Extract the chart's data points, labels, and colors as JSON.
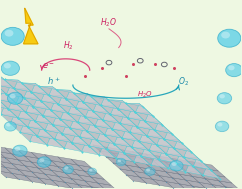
{
  "bg_color": "#eef8e2",
  "crystal_face_color": "#c4c4cc",
  "crystal_dark_color": "#a8a8b4",
  "crystal_edge_color": "#48ccd4",
  "crystal_node_color": "#50d4dc",
  "crystal_inner_color": "#d8d8e0",
  "bubble_color": "#50cce8",
  "bubble_edge": "#28a8c8",
  "lightning_color": "#f8c800",
  "lightning_edge": "#d09000",
  "arrow_pink": "#d83870",
  "arrow_cyan": "#18a0b8",
  "label_pink": "#cc2060",
  "label_cyan": "#1888a8",
  "graphene_face": "#9898a8",
  "graphene_edge": "#606878",
  "graphene_node": "#5090b0",
  "red_dot_color": "#cc3355",
  "vacancy_edge": "#505060",
  "slab_main_ox": 0.1,
  "slab_main_oy": 0.28,
  "slab_cols": 11,
  "slab_rows": 9
}
